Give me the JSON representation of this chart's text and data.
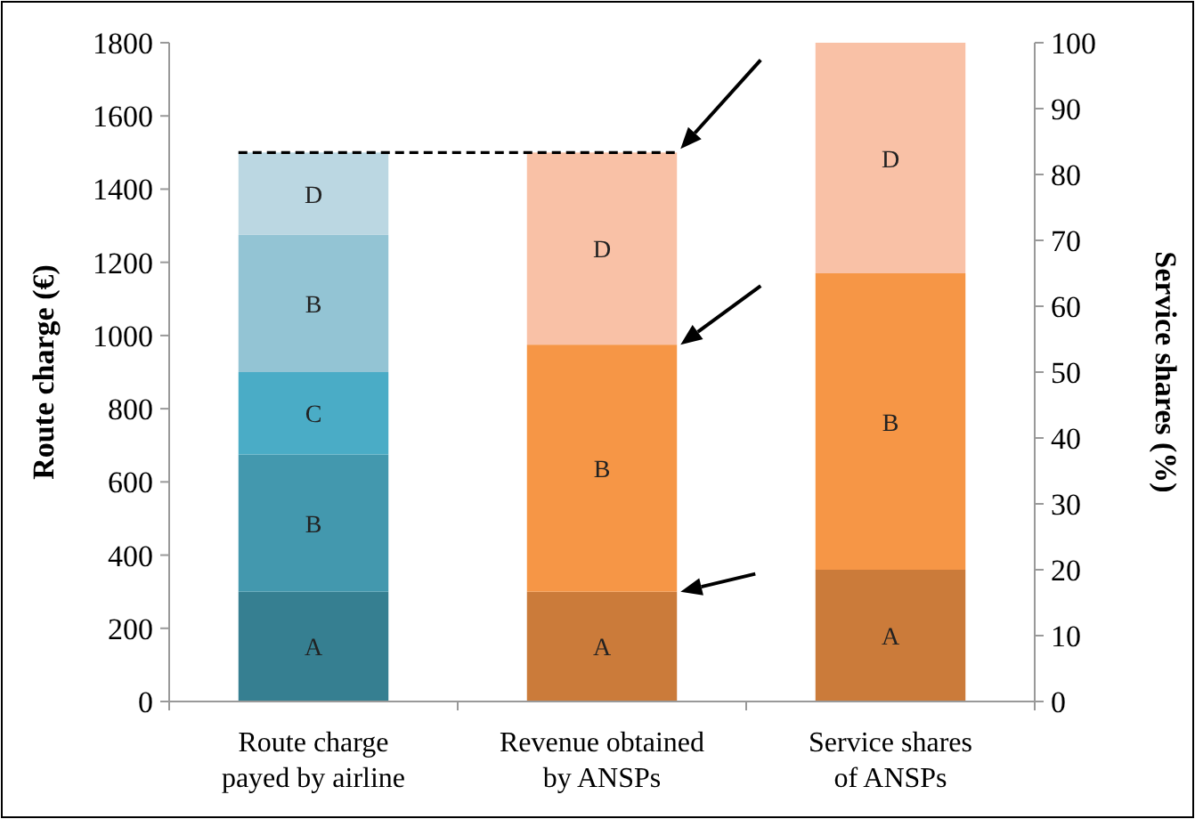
{
  "chart_data": {
    "type": "bar",
    "stacked": true,
    "categories": [
      "Route charge payed by airline",
      "Revenue obtained by ANSPs",
      "Service shares of ANSPs"
    ],
    "ylabel": "Route charge (€)",
    "y2label": "Service shares (%)",
    "ylim": [
      0,
      1800
    ],
    "yticks": [
      0,
      200,
      400,
      600,
      800,
      1000,
      1200,
      1400,
      1600,
      1800
    ],
    "y2lim": [
      0,
      100
    ],
    "y2ticks": [
      0,
      10,
      20,
      30,
      40,
      50,
      60,
      70,
      80,
      90,
      100
    ],
    "grid": false,
    "series": [
      {
        "values": [
          300,
          300,
          null
        ],
        "colors": [
          "#367f91",
          "#cb7b3a",
          null
        ],
        "value_labels": [
          "A",
          "A",
          null
        ]
      },
      {
        "values": [
          375,
          675,
          null
        ],
        "colors": [
          "#4398ae",
          "#f69646",
          null
        ],
        "value_labels": [
          "B",
          "B",
          null
        ]
      },
      {
        "values": [
          225,
          525,
          null
        ],
        "colors": [
          "#4aacc6",
          "#f9c1a6",
          null
        ],
        "value_labels": [
          "C",
          "D",
          null
        ]
      },
      {
        "values": [
          375,
          null,
          null
        ],
        "colors": [
          "#93c4d4",
          null,
          null
        ],
        "value_labels": [
          "B",
          null,
          null
        ]
      },
      {
        "values": [
          225,
          null,
          null
        ],
        "colors": [
          "#bbd7e2",
          null,
          null
        ],
        "value_labels": [
          "D",
          null,
          null
        ]
      },
      {
        "axis": "y2",
        "values": [
          null,
          null,
          20
        ],
        "colors": [
          null,
          null,
          "#cb7b3a"
        ],
        "value_labels": [
          null,
          null,
          "A"
        ]
      },
      {
        "axis": "y2",
        "values": [
          null,
          null,
          45
        ],
        "colors": [
          null,
          null,
          "#f69646"
        ],
        "value_labels": [
          null,
          null,
          "B"
        ]
      },
      {
        "axis": "y2",
        "values": [
          null,
          null,
          35
        ],
        "colors": [
          null,
          null,
          "#f9c1a6"
        ],
        "value_labels": [
          null,
          null,
          "D"
        ]
      }
    ],
    "ref_lines": [
      {
        "axis": "y",
        "value": 1500,
        "line_style": "dashed",
        "color": "#000000"
      }
    ]
  }
}
